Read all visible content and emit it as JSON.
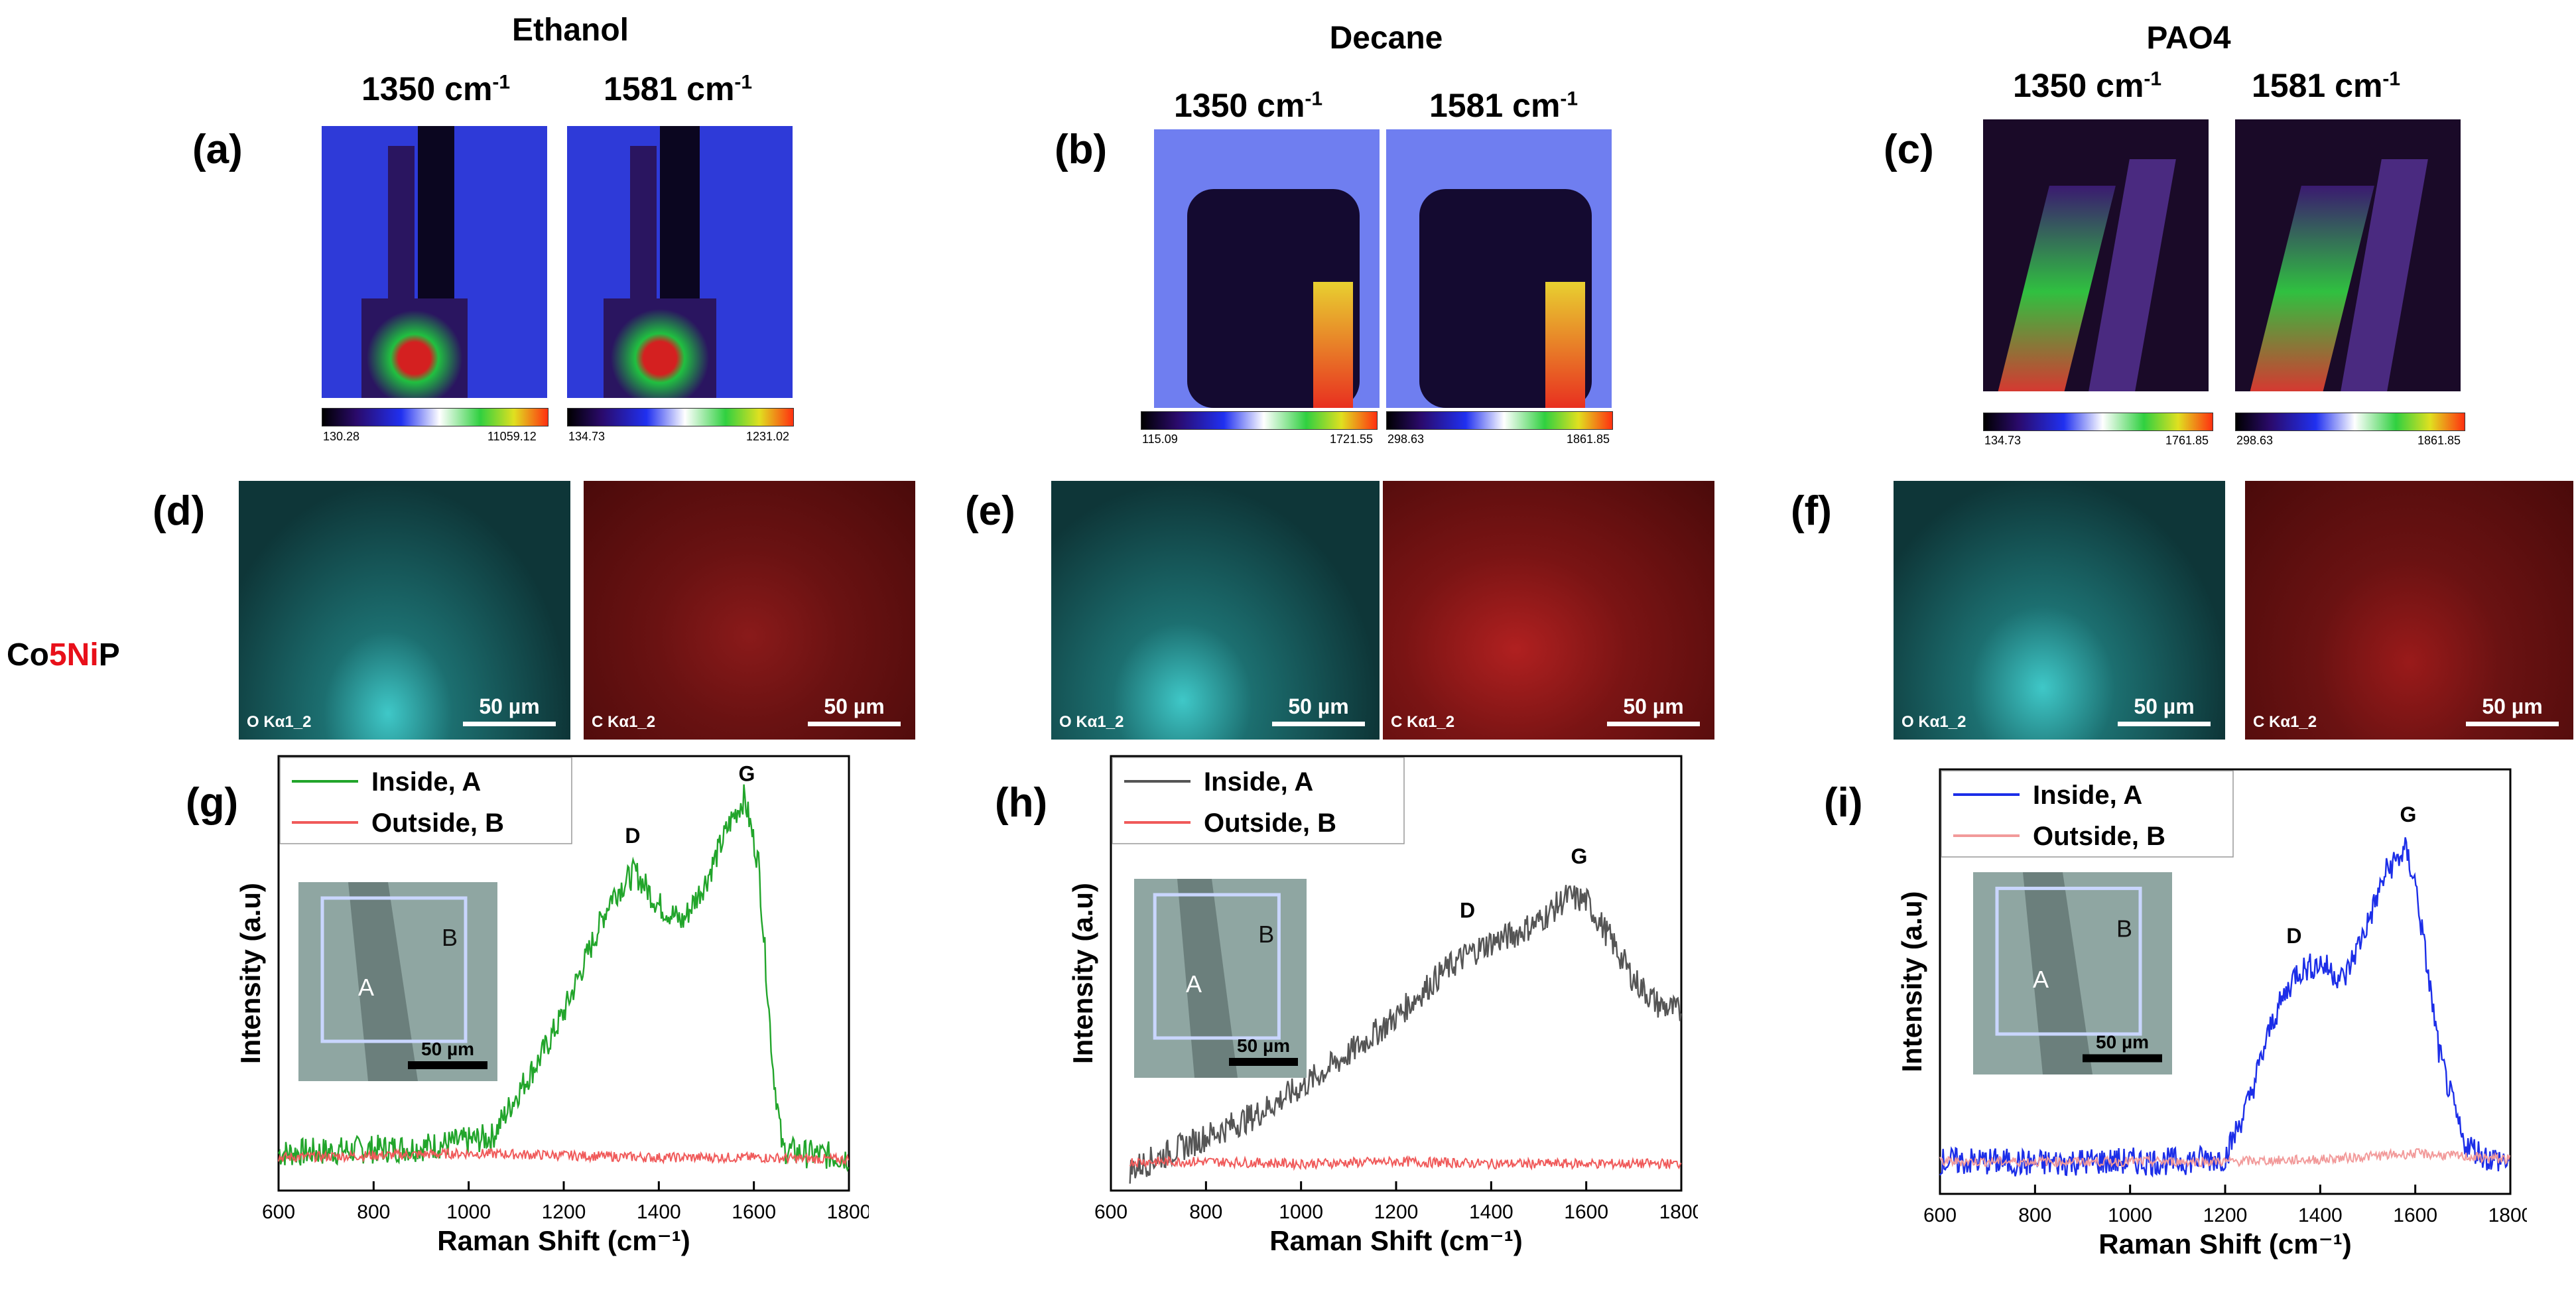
{
  "columns": [
    {
      "title": "Ethanol",
      "map_label": "(a)",
      "eds_label": "(d)",
      "spectrum_label": "(g)",
      "maps": [
        {
          "wavenumber": "1350",
          "unit": "cm",
          "exp": "-1",
          "cmin": "130.28",
          "cmax": "11059.12"
        },
        {
          "wavenumber": "1581",
          "unit": "cm",
          "exp": "-1",
          "cmin": "134.73",
          "cmax": "1231.02"
        }
      ],
      "eds": [
        {
          "label": "O Kα1_2",
          "scale": "50 µm"
        },
        {
          "label": "C Kα1_2",
          "scale": "50 µm"
        }
      ]
    },
    {
      "title": "Decane",
      "map_label": "(b)",
      "eds_label": "(e)",
      "spectrum_label": "(h)",
      "maps": [
        {
          "wavenumber": "1350",
          "unit": "cm",
          "exp": "-1",
          "cmin": "115.09",
          "cmax": "1721.55"
        },
        {
          "wavenumber": "1581",
          "unit": "cm",
          "exp": "-1",
          "cmin": "298.63",
          "cmax": "1861.85"
        }
      ],
      "eds": [
        {
          "label": "O Kα1_2",
          "scale": "50 µm"
        },
        {
          "label": "C Kα1_2",
          "scale": "50 µm"
        }
      ]
    },
    {
      "title": "PAO4",
      "map_label": "(c)",
      "eds_label": "(f)",
      "spectrum_label": "(i)",
      "maps": [
        {
          "wavenumber": "1350",
          "unit": "cm",
          "exp": "-1",
          "cmin": "134.73",
          "cmax": "1761.85"
        },
        {
          "wavenumber": "1581",
          "unit": "cm",
          "exp": "-1",
          "cmin": "298.63",
          "cmax": "1861.85"
        }
      ],
      "eds": [
        {
          "label": "O Kα1_2",
          "scale": "50 µm"
        },
        {
          "label": "C Kα1_2",
          "scale": "50 µm"
        }
      ]
    }
  ],
  "sample": {
    "p1": "Co",
    "p2": "5Ni",
    "p3": "P",
    "highlight_color": "#e8101a"
  },
  "chart_data": [
    {
      "type": "line",
      "panel": "(g)",
      "xlabel": "Raman Shift (cm⁻¹)",
      "ylabel": "Intensity (a.u)",
      "xlim": [
        600,
        1800
      ],
      "xticks": [
        600,
        800,
        1000,
        1200,
        1400,
        1600,
        1800
      ],
      "series": [
        {
          "name": "Inside, A",
          "color": "#22a52b",
          "x": [
            600,
            700,
            800,
            900,
            1000,
            1050,
            1100,
            1150,
            1200,
            1250,
            1300,
            1350,
            1400,
            1450,
            1500,
            1550,
            1580,
            1610,
            1640,
            1660,
            1700,
            1800
          ],
          "y": [
            0.04,
            0.045,
            0.05,
            0.055,
            0.07,
            0.08,
            0.18,
            0.27,
            0.38,
            0.52,
            0.66,
            0.72,
            0.64,
            0.6,
            0.7,
            0.84,
            0.9,
            0.74,
            0.25,
            0.05,
            0.04,
            0.03
          ]
        },
        {
          "name": "Outside, B",
          "color": "#f05a5a",
          "x": [
            600,
            800,
            1000,
            1200,
            1400,
            1600,
            1800
          ],
          "y": [
            0.03,
            0.035,
            0.04,
            0.035,
            0.03,
            0.03,
            0.025
          ]
        }
      ],
      "annotations": [
        {
          "text": "D",
          "x": 1345,
          "y": 0.79
        },
        {
          "text": "G",
          "x": 1585,
          "y": 0.94
        }
      ],
      "inset": {
        "region_a": "A",
        "region_b": "B",
        "scale": "50 µm"
      }
    },
    {
      "type": "line",
      "panel": "(h)",
      "xlabel": "Raman Shift (cm⁻¹)",
      "ylabel": "Intensity (a.u)",
      "xlim": [
        600,
        1800
      ],
      "xticks": [
        600,
        800,
        1000,
        1200,
        1400,
        1600,
        1800
      ],
      "series": [
        {
          "name": "Inside, A",
          "color": "#555555",
          "x": [
            640,
            700,
            800,
            900,
            1000,
            1100,
            1200,
            1300,
            1350,
            1400,
            1450,
            1500,
            1560,
            1600,
            1650,
            1700,
            1750,
            1800
          ],
          "y": [
            0.0,
            0.03,
            0.08,
            0.13,
            0.2,
            0.28,
            0.37,
            0.48,
            0.52,
            0.55,
            0.57,
            0.6,
            0.66,
            0.65,
            0.56,
            0.46,
            0.4,
            0.38
          ]
        },
        {
          "name": "Outside, B",
          "color": "#f05a5a",
          "x": [
            640,
            800,
            1000,
            1200,
            1400,
            1600,
            1800
          ],
          "y": [
            0.02,
            0.02,
            0.015,
            0.02,
            0.015,
            0.015,
            0.015
          ]
        }
      ],
      "annotations": [
        {
          "text": "D",
          "x": 1350,
          "y": 0.61
        },
        {
          "text": "G",
          "x": 1585,
          "y": 0.74
        }
      ],
      "inset": {
        "region_a": "A",
        "region_b": "B",
        "scale": "50 µm"
      }
    },
    {
      "type": "line",
      "panel": "(i)",
      "xlabel": "Raman Shift (cm⁻¹)",
      "ylabel": "Intensity (a.u)",
      "xlim": [
        600,
        1800
      ],
      "xticks": [
        600,
        800,
        1000,
        1200,
        1400,
        1600,
        1800
      ],
      "series": [
        {
          "name": "Inside, A",
          "color": "#1c2ee8",
          "x": [
            600,
            700,
            800,
            900,
            1000,
            1100,
            1200,
            1250,
            1300,
            1350,
            1400,
            1450,
            1500,
            1540,
            1580,
            1600,
            1650,
            1700,
            1750,
            1800
          ],
          "y": [
            0.03,
            0.03,
            0.025,
            0.03,
            0.03,
            0.03,
            0.04,
            0.18,
            0.38,
            0.5,
            0.52,
            0.48,
            0.62,
            0.75,
            0.8,
            0.72,
            0.3,
            0.08,
            0.04,
            0.03
          ]
        },
        {
          "name": "Outside, B",
          "color": "#f29a9a",
          "x": [
            600,
            800,
            1000,
            1200,
            1400,
            1600,
            1800
          ],
          "y": [
            0.03,
            0.03,
            0.03,
            0.03,
            0.035,
            0.05,
            0.035
          ]
        }
      ],
      "annotations": [
        {
          "text": "D",
          "x": 1345,
          "y": 0.57
        },
        {
          "text": "G",
          "x": 1585,
          "y": 0.87
        }
      ],
      "inset": {
        "region_a": "A",
        "region_b": "B",
        "scale": "50 µm"
      }
    }
  ]
}
